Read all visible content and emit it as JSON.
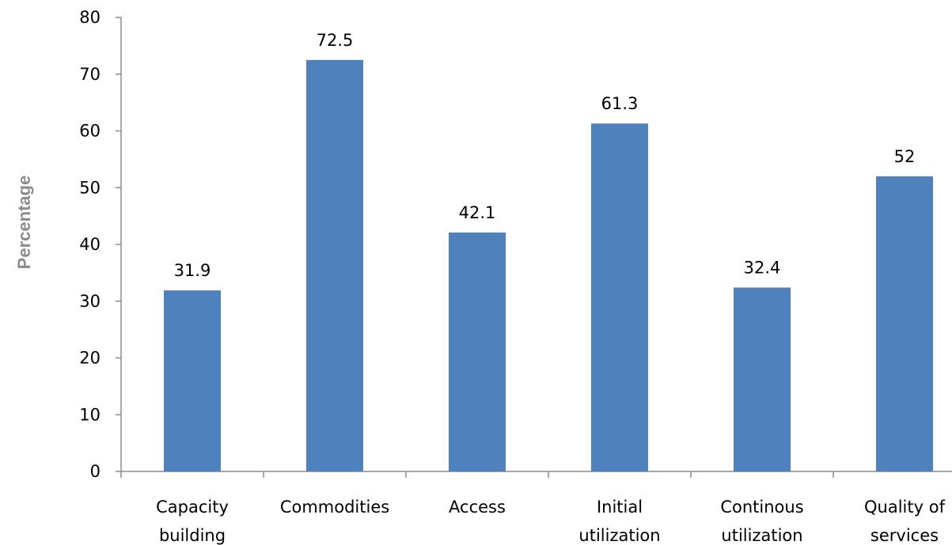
{
  "chart_data": {
    "type": "bar",
    "categories": [
      [
        "Capacity",
        "building"
      ],
      [
        "Commodities"
      ],
      [
        "Access"
      ],
      [
        "Initial",
        "utilization"
      ],
      [
        "Continous",
        "utilization"
      ],
      [
        "Quality of",
        "services"
      ]
    ],
    "values": [
      31.9,
      72.5,
      42.1,
      61.3,
      32.4,
      52
    ],
    "data_labels": [
      "31.9",
      "72.5",
      "42.1",
      "61.3",
      "32.4",
      "52"
    ],
    "ylabel": "Percentage",
    "xlabel": "",
    "ylim": [
      0,
      80
    ],
    "yticks": [
      0,
      10,
      20,
      30,
      40,
      50,
      60,
      70,
      80
    ],
    "grid": false,
    "legend": "none",
    "bar_color": "#4f81bd"
  }
}
